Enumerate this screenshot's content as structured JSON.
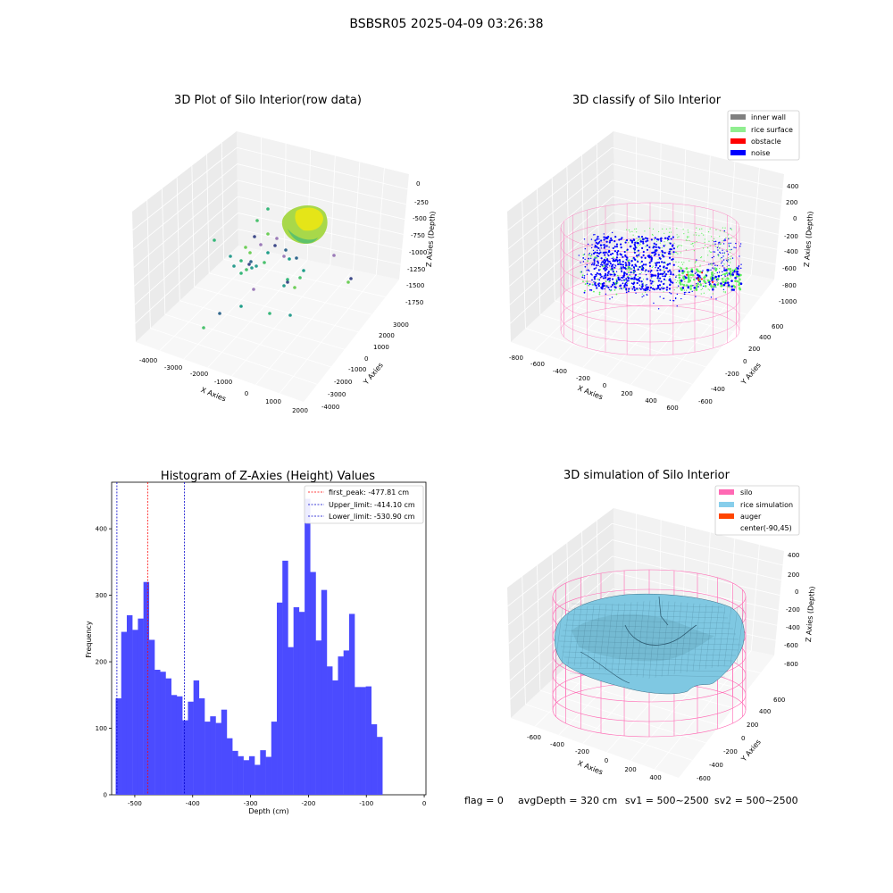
{
  "figure": {
    "suptitle": "BSBSR05 2025-04-09 03:26:38",
    "footer": {
      "flag": "flag = 0",
      "avg_depth": "avgDepth = 320 cm",
      "sv1": "sv1 = 500~2500",
      "sv2": "sv2 = 500~2500"
    }
  },
  "colors": {
    "histogram_bar": "#4b4bff",
    "first_peak_line": "#ff0000",
    "limit_line": "#0000cc",
    "inner_wall": "#808080",
    "rice_surface": "#90ee90",
    "obstacle": "#ff0000",
    "noise": "#0000ff",
    "silo": "#ff69b4",
    "rice_simulation": "#87ceeb",
    "auger": "#ff4500"
  },
  "chart_data": [
    {
      "type": "scatter3d",
      "title": "3D Plot of Silo Interior(row data)",
      "xlabel": "X Axies",
      "ylabel": "Y Axies",
      "zlabel": "Z Axies (Depth)",
      "x_ticks": [
        "-4000",
        "-3000",
        "-2000",
        "-1000",
        "0",
        "1000",
        "2000"
      ],
      "y_ticks": [
        "-4000",
        "-3000",
        "-2000",
        "-1000",
        "0",
        "1000",
        "2000",
        "3000"
      ],
      "z_ticks": [
        "0",
        "-250",
        "-500",
        "-750",
        "-1000",
        "-1250",
        "-1500",
        "-1750"
      ],
      "xlim": [
        -4500,
        2000
      ],
      "ylim": [
        -4000,
        3000
      ],
      "zlim": [
        -1750,
        0
      ]
    },
    {
      "type": "scatter3d",
      "title": "3D classify of Silo Interior",
      "xlabel": "X Axies",
      "ylabel": "Y Axies",
      "zlabel": "Z Axies (Depth)",
      "x_ticks": [
        "-800",
        "-600",
        "-400",
        "-200",
        "0",
        "200",
        "400",
        "600"
      ],
      "y_ticks": [
        "-600",
        "-400",
        "-200",
        "0",
        "200",
        "400",
        "600"
      ],
      "z_ticks": [
        "400",
        "200",
        "0",
        "-200",
        "-400",
        "-600",
        "-800",
        "-1000"
      ],
      "xlim": [
        -800,
        600
      ],
      "ylim": [
        -600,
        600
      ],
      "zlim": [
        -1000,
        400
      ],
      "legend_position": "top-right",
      "legend": [
        "inner wall",
        "rice surface",
        "obstacle",
        "noise"
      ]
    },
    {
      "type": "bar",
      "title": "Histogram of Z-Axies (Height) Values",
      "xlabel": "Depth (cm)",
      "ylabel": "Frequency",
      "xlim": [
        -540,
        3
      ],
      "ylim": [
        0,
        470
      ],
      "x_ticks": [
        -500,
        -400,
        -300,
        -200,
        -100,
        0
      ],
      "y_ticks": [
        0,
        100,
        200,
        300,
        400
      ],
      "bin_start": -533,
      "bin_width": 9.6,
      "values": [
        145,
        245,
        270,
        248,
        265,
        320,
        233,
        188,
        185,
        175,
        150,
        148,
        112,
        140,
        172,
        145,
        110,
        118,
        108,
        128,
        85,
        66,
        58,
        52,
        58,
        45,
        67,
        57,
        110,
        289,
        352,
        222,
        282,
        275,
        445,
        335,
        232,
        308,
        193,
        172,
        208,
        217,
        272,
        162,
        162,
        163,
        106,
        87
      ],
      "vlines": [
        {
          "label": "first_peak: -477.81 cm",
          "x": -477.81,
          "color": "#ff0000"
        },
        {
          "label": "Upper_limit: -414.10 cm",
          "x": -414.1,
          "color": "#0000cc"
        },
        {
          "label": "Lower_limit: -530.90 cm",
          "x": -530.9,
          "color": "#0000cc"
        }
      ],
      "legend_position": "top-right"
    },
    {
      "type": "surface3d",
      "title": "3D simulation of Silo Interior",
      "xlabel": "X Axies",
      "ylabel": "Y Axies",
      "zlabel": "Z Axies (Depth)",
      "x_ticks": [
        "-600",
        "-400",
        "-200",
        "0",
        "200",
        "400"
      ],
      "y_ticks": [
        "-600",
        "-400",
        "-200",
        "0",
        "200",
        "400",
        "600"
      ],
      "z_ticks": [
        "400",
        "200",
        "0",
        "-200",
        "-400",
        "-600",
        "-800"
      ],
      "xlim": [
        -700,
        500
      ],
      "ylim": [
        -600,
        600
      ],
      "zlim": [
        -900,
        400
      ],
      "legend_position": "top-right",
      "legend": [
        "silo",
        "rice simulation",
        "auger",
        "center(-90,45)"
      ]
    }
  ]
}
